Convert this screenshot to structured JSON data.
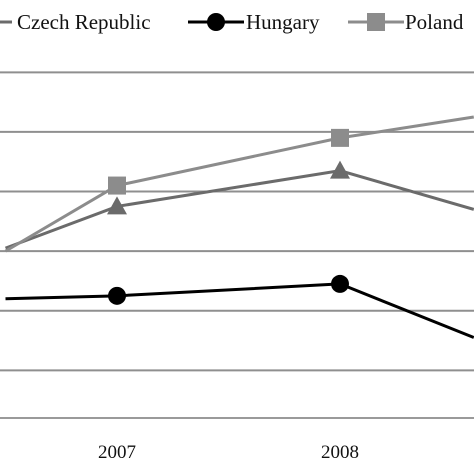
{
  "chart_data": {
    "type": "line",
    "title": "",
    "xlabel": "",
    "ylabel": "",
    "x_tick_labels": [
      "2007",
      "2008"
    ],
    "grid": true,
    "legend_position": "top",
    "legend": [
      {
        "label": "Czech Republic",
        "marker": "triangle",
        "color": "#6b6b6b"
      },
      {
        "label": "Hungary",
        "marker": "circle",
        "color": "#000000"
      },
      {
        "label": "Poland",
        "marker": "square",
        "color": "#8c8c8c"
      }
    ],
    "x": [
      2006.5,
      2007,
      2008,
      2008.6
    ],
    "series": [
      {
        "name": "Czech Republic",
        "color": "#6b6b6b",
        "marker": "triangle",
        "y": [
          4.85,
          5.55,
          6.15,
          5.5
        ]
      },
      {
        "name": "Hungary",
        "color": "#000000",
        "marker": "circle",
        "y": [
          4.0,
          4.05,
          4.25,
          3.35
        ]
      },
      {
        "name": "Poland",
        "color": "#8c8c8c",
        "marker": "square",
        "y": [
          4.8,
          5.9,
          6.7,
          7.05
        ]
      }
    ],
    "ylim": [
      2,
      8
    ],
    "gridlines_y": [
      2.8,
      3.8,
      4.8,
      5.8,
      6.8,
      7.8
    ]
  }
}
